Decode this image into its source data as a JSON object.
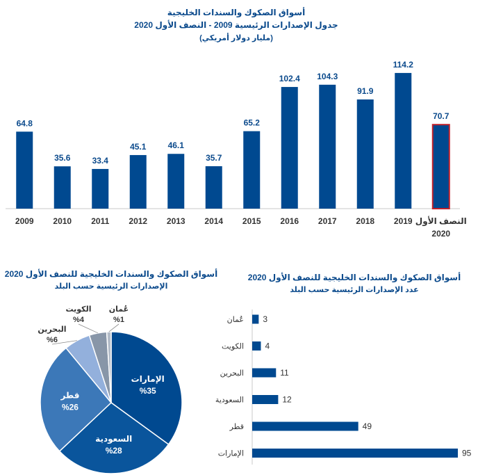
{
  "chart_data": [
    {
      "type": "bar",
      "title": "أسواق الصكوك والسندات الخليجية",
      "subtitle": "جدول الإصدارات الرئيسية 2009 - النصف الأول 2020",
      "unit": "(مليار دولار أمريكي)",
      "categories": [
        "2009",
        "2010",
        "2011",
        "2012",
        "2013",
        "2014",
        "2015",
        "2016",
        "2017",
        "2018",
        "2019",
        "النصف الأول 2020"
      ],
      "values": [
        64.8,
        35.6,
        33.4,
        45.1,
        46.1,
        35.7,
        65.2,
        102.4,
        104.3,
        91.9,
        114.2,
        70.7
      ],
      "labels": [
        "64.8",
        "35.6",
        "33.4",
        "45.1",
        "46.1",
        "35.7",
        "65.2",
        "102.4",
        "104.3",
        "91.9",
        "114.2",
        "70.7"
      ],
      "highlight_index": 11,
      "ylim": [
        0,
        120
      ],
      "grid": false,
      "colors": {
        "bar": "#004990",
        "highlight_border": "#c0202a"
      }
    },
    {
      "type": "pie",
      "title": "أسواق الصكوك والسندات الخليجية للنصف الأول 2020",
      "subtitle": "الإصدارات الرئيسية حسب البلد",
      "slices": [
        {
          "name": "الإمارات",
          "value": 35,
          "label": "%35",
          "color": "#004990"
        },
        {
          "name": "السعودية",
          "value": 28,
          "label": "%28",
          "color": "#0a559c"
        },
        {
          "name": "قطر",
          "value": 26,
          "label": "%26",
          "color": "#3c78b8"
        },
        {
          "name": "البحرين",
          "value": 6,
          "label": "%6",
          "color": "#93b0dc"
        },
        {
          "name": "الكويت",
          "value": 4,
          "label": "%4",
          "color": "#8896a8"
        },
        {
          "name": "عُمان",
          "value": 1,
          "label": "%1",
          "color": "#b3bcc8"
        }
      ]
    },
    {
      "type": "bar",
      "orientation": "horizontal",
      "title": "أسواق الصكوك والسندات الخليجية للنصف الأول 2020",
      "subtitle": "عدد الإصدارات الرئيسية حسب البلد",
      "categories": [
        "عُمان",
        "الكويت",
        "البحرين",
        "السعودية",
        "قطر",
        "الإمارات"
      ],
      "values": [
        3,
        4,
        11,
        12,
        49,
        95
      ],
      "labels": [
        "3",
        "4",
        "11",
        "12",
        "49",
        "95"
      ],
      "xlim": [
        0,
        95
      ],
      "colors": {
        "bar": "#004990"
      }
    }
  ]
}
